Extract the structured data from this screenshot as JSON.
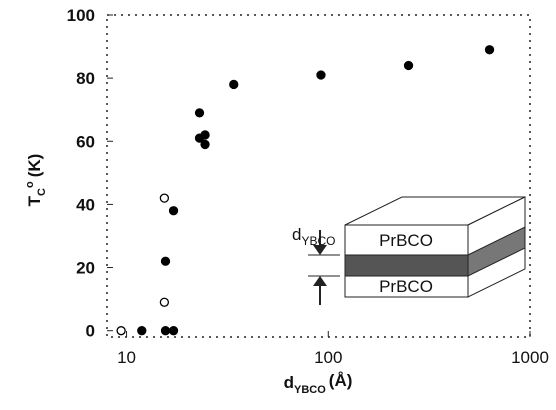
{
  "chart_data": {
    "type": "scatter",
    "ylabel": {
      "main": "T",
      "sub": "C",
      "sup": "o",
      "unit": "(K)"
    },
    "xlabel": {
      "main": "d",
      "sub": "YBCO",
      "unit": "(Å)"
    },
    "xscale": "log",
    "xlim": [
      8,
      1000
    ],
    "xticks": [
      10,
      100,
      1000
    ],
    "ylim": [
      -2,
      100
    ],
    "yticks": [
      0,
      20,
      40,
      60,
      80,
      100
    ],
    "series": [
      {
        "marker": "filled",
        "color": "#000000",
        "x": [
          11.9,
          17.1,
          15.6,
          15.6,
          17.1,
          23,
          23,
          24.5,
          24.5,
          34,
          92,
          250,
          630
        ],
        "values": [
          0,
          38,
          22,
          0,
          0,
          69,
          61,
          62,
          59,
          78,
          81,
          84,
          89
        ]
      },
      {
        "marker": "open",
        "color": "#000000",
        "x": [
          9.4,
          15.4,
          15.4
        ],
        "values": [
          0,
          42,
          9
        ]
      }
    ],
    "inset": {
      "top_layer": "PrBCO",
      "bottom_layer": "PrBCO",
      "thickness_label": {
        "main": "d",
        "sub": "YBCO"
      }
    }
  }
}
